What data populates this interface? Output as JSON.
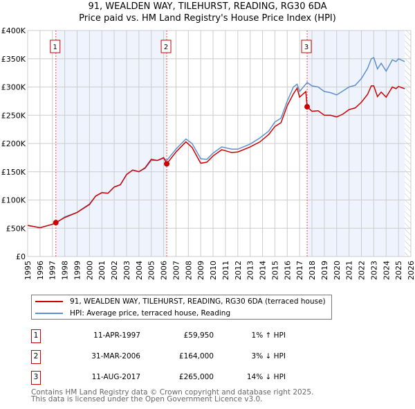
{
  "title": "91, WEALDEN WAY, TILEHURST, READING, RG30 6DA",
  "subtitle": "Price paid vs. HM Land Registry's House Price Index (HPI)",
  "legend": {
    "property": "91, WEALDEN WAY, TILEHURST, READING, RG30 6DA (terraced house)",
    "hpi": "HPI: Average price, terraced house, Reading"
  },
  "colors": {
    "property": "#cc0000",
    "hpi": "#5b8fd4",
    "shade": "#eef3fd",
    "grid": "#cccccc"
  },
  "sales": [
    {
      "num": "1",
      "date": "11-APR-1997",
      "price": "£59,950",
      "pct": "1% ↑ HPI"
    },
    {
      "num": "2",
      "date": "31-MAR-2006",
      "price": "£164,000",
      "pct": "3% ↓ HPI"
    },
    {
      "num": "3",
      "date": "11-AUG-2017",
      "price": "£265,000",
      "pct": "14% ↓ HPI"
    }
  ],
  "footer": [
    "Contains HM Land Registry data © Crown copyright and database right 2025.",
    "This data is licensed under the Open Government Licence v3.0."
  ],
  "chart_data": {
    "type": "line",
    "xlim": [
      1995,
      2026
    ],
    "ylim": [
      0,
      400000
    ],
    "xticks": [
      "1995",
      "1996",
      "1997",
      "1998",
      "1999",
      "2000",
      "2001",
      "2002",
      "2003",
      "2004",
      "2005",
      "2006",
      "2007",
      "2008",
      "2009",
      "2010",
      "2011",
      "2012",
      "2013",
      "2014",
      "2015",
      "2016",
      "2017",
      "2018",
      "2019",
      "2020",
      "2021",
      "2022",
      "2023",
      "2024",
      "2025",
      "2026"
    ],
    "yticks": [
      {
        "v": 0,
        "l": "£0"
      },
      {
        "v": 50000,
        "l": "£50K"
      },
      {
        "v": 100000,
        "l": "£100K"
      },
      {
        "v": 150000,
        "l": "£150K"
      },
      {
        "v": 200000,
        "l": "£200K"
      },
      {
        "v": 250000,
        "l": "£250K"
      },
      {
        "v": 300000,
        "l": "£300K"
      },
      {
        "v": 350000,
        "l": "£350K"
      },
      {
        "v": 400000,
        "l": "£400K"
      }
    ],
    "markers": [
      {
        "label": "1",
        "x": 1997.28,
        "y": 59950
      },
      {
        "label": "2",
        "x": 2006.25,
        "y": 164000
      },
      {
        "label": "3",
        "x": 2017.61,
        "y": 265000
      }
    ],
    "shaded": [
      [
        1997.28,
        2006.25
      ],
      [
        2017.61,
        2025.5
      ]
    ],
    "hatch_from": 2025.5,
    "series": [
      {
        "name": "property",
        "x": [
          1995,
          1996,
          1997,
          1997.28,
          1998,
          1999,
          2000,
          2000.5,
          2001,
          2001.5,
          2002,
          2002.5,
          2003,
          2003.5,
          2004,
          2004.5,
          2005,
          2005.5,
          2006,
          2006.25,
          2007,
          2007.8,
          2008.3,
          2009,
          2009.5,
          2010,
          2010.7,
          2011.5,
          2012,
          2013,
          2013.8,
          2014.5,
          2015,
          2015.5,
          2016,
          2016.5,
          2016.8,
          2017,
          2017.5,
          2017.61,
          2018,
          2018.5,
          2019,
          2019.5,
          2020,
          2020.5,
          2021,
          2021.5,
          2022,
          2022.5,
          2022.8,
          2023,
          2023.3,
          2023.6,
          2024,
          2024.5,
          2024.8,
          2025,
          2025.5
        ],
        "y": [
          55000,
          51000,
          57000,
          59950,
          69000,
          78000,
          92000,
          107000,
          113000,
          112000,
          123000,
          127000,
          145000,
          153000,
          150000,
          157000,
          172000,
          170000,
          175000,
          164000,
          185000,
          203000,
          193000,
          165000,
          167000,
          178000,
          189000,
          184000,
          185000,
          194000,
          203000,
          216000,
          230000,
          237000,
          267000,
          288000,
          298000,
          282000,
          292000,
          265000,
          257000,
          258000,
          250000,
          250000,
          247000,
          252000,
          260000,
          263000,
          273000,
          287000,
          302000,
          302000,
          283000,
          291000,
          282000,
          300000,
          297000,
          301000,
          297000
        ]
      },
      {
        "name": "hpi",
        "x": [
          1995,
          1996,
          1997,
          1997.28,
          1998,
          1999,
          2000,
          2000.5,
          2001,
          2001.5,
          2002,
          2002.5,
          2003,
          2003.5,
          2004,
          2004.5,
          2005,
          2005.5,
          2006,
          2006.25,
          2007,
          2007.8,
          2008.3,
          2009,
          2009.5,
          2010,
          2010.7,
          2011.5,
          2012,
          2013,
          2013.8,
          2014.5,
          2015,
          2015.5,
          2016,
          2016.5,
          2016.8,
          2017,
          2017.61,
          2018,
          2018.5,
          2019,
          2019.5,
          2020,
          2020.5,
          2021,
          2021.5,
          2022,
          2022.5,
          2022.8,
          2023,
          2023.3,
          2023.6,
          2024,
          2024.5,
          2024.8,
          2025,
          2025.5
        ],
        "y": [
          55000,
          51000,
          57000,
          59000,
          70000,
          78000,
          93000,
          107000,
          113000,
          112000,
          123000,
          127000,
          145000,
          153000,
          150000,
          156000,
          170000,
          170000,
          174000,
          170000,
          190000,
          208000,
          200000,
          173000,
          172000,
          183000,
          194000,
          190000,
          190000,
          199000,
          210000,
          222000,
          238000,
          245000,
          275000,
          300000,
          305000,
          292000,
          308000,
          302000,
          300000,
          292000,
          290000,
          286000,
          293000,
          300000,
          303000,
          315000,
          333000,
          350000,
          352000,
          332000,
          342000,
          328000,
          348000,
          345000,
          350000,
          345000
        ]
      }
    ]
  }
}
